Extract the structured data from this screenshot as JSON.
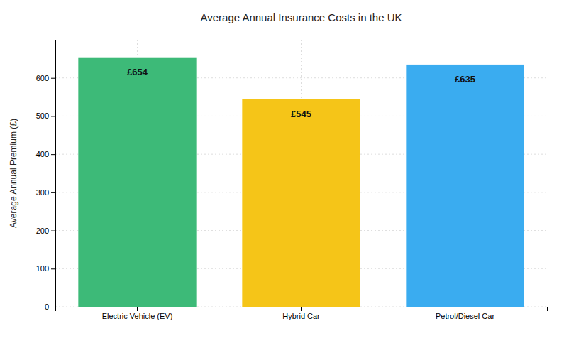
{
  "chart_data": {
    "type": "bar",
    "title": "Average Annual Insurance Costs in the UK",
    "categories": [
      "Electric Vehicle (EV)",
      "Hybrid Car",
      "Petrol/Diesel Car"
    ],
    "values": [
      654,
      545,
      635
    ],
    "colors": [
      "#3dba78",
      "#f5c518",
      "#3aacf0"
    ],
    "data_labels": true,
    "value_labels": [
      "£654",
      "£545",
      "£635"
    ],
    "ylabel": "Average Annual Premium (£)",
    "ylim": [
      0,
      700
    ],
    "yticks": [
      0,
      100,
      200,
      300,
      400,
      500,
      600
    ],
    "grid": true
  }
}
